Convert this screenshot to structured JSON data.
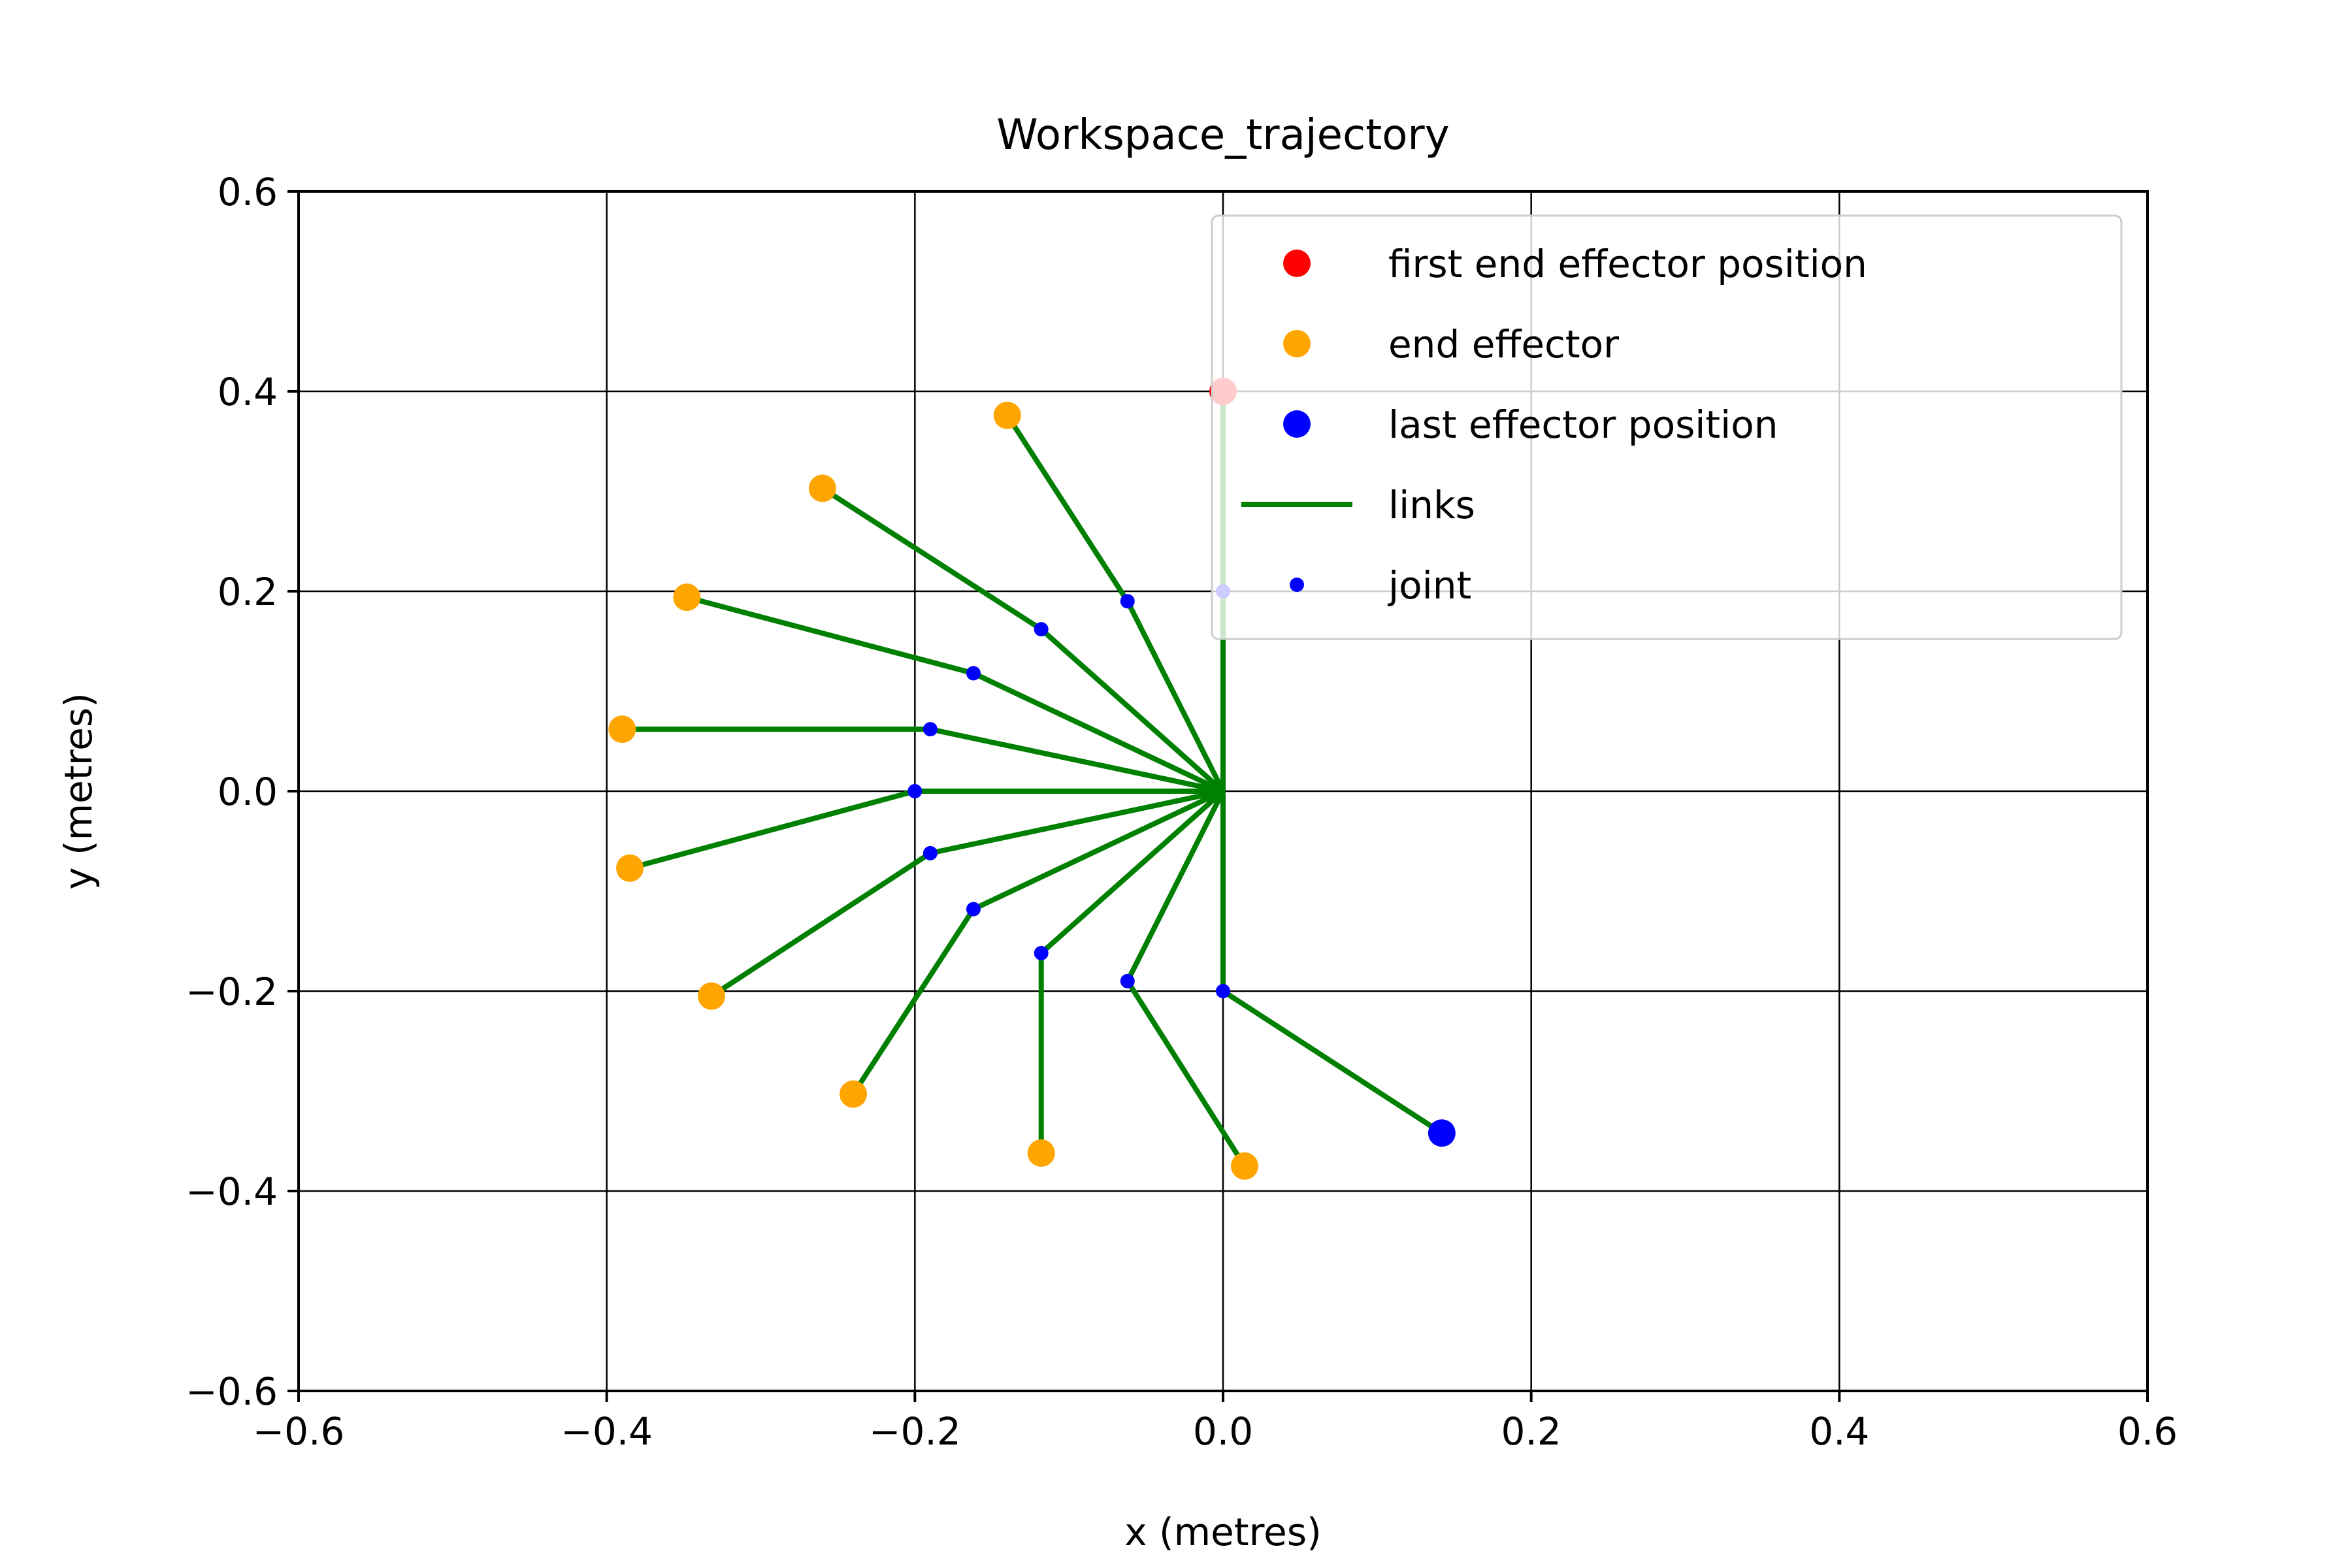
{
  "chart_data": {
    "type": "scatter",
    "title": "Workspace_trajectory",
    "xlabel": "x (metres)",
    "ylabel": "y (metres)",
    "xlim": [
      -0.6,
      0.6
    ],
    "ylim": [
      -0.6,
      0.6
    ],
    "x_ticks": [
      -0.6,
      -0.4,
      -0.2,
      0.0,
      0.2,
      0.4,
      0.6
    ],
    "y_ticks": [
      -0.6,
      -0.4,
      -0.2,
      0.0,
      0.2,
      0.4,
      0.6
    ],
    "x_tick_labels": [
      "−0.6",
      "−0.4",
      "−0.2",
      "0.0",
      "0.2",
      "0.4",
      "0.6"
    ],
    "y_tick_labels": [
      "−0.6",
      "−0.4",
      "−0.2",
      "0.0",
      "0.2",
      "0.4",
      "0.6"
    ],
    "grid": true,
    "legend_position": "top-right",
    "base": [
      0.0,
      0.0
    ],
    "configurations": [
      {
        "joint": [
          0.0,
          0.2
        ],
        "end": [
          0.0,
          0.4
        ]
      },
      {
        "joint": [
          -0.062,
          0.19
        ],
        "end": [
          -0.14,
          0.376
        ]
      },
      {
        "joint": [
          -0.118,
          0.162
        ],
        "end": [
          -0.26,
          0.303
        ]
      },
      {
        "joint": [
          -0.162,
          0.118
        ],
        "end": [
          -0.348,
          0.194
        ]
      },
      {
        "joint": [
          -0.19,
          0.062
        ],
        "end": [
          -0.39,
          0.062
        ]
      },
      {
        "joint": [
          -0.2,
          0.0
        ],
        "end": [
          -0.385,
          -0.077
        ]
      },
      {
        "joint": [
          -0.19,
          -0.062
        ],
        "end": [
          -0.332,
          -0.205
        ]
      },
      {
        "joint": [
          -0.162,
          -0.118
        ],
        "end": [
          -0.24,
          -0.303
        ]
      },
      {
        "joint": [
          -0.118,
          -0.162
        ],
        "end": [
          -0.118,
          -0.362
        ]
      },
      {
        "joint": [
          -0.062,
          -0.19
        ],
        "end": [
          0.014,
          -0.375
        ]
      },
      {
        "joint": [
          0.0,
          -0.2
        ],
        "end": [
          0.142,
          -0.342
        ]
      }
    ],
    "legend": [
      {
        "label": "first end effector position",
        "marker": "large-dot",
        "color": "#ff0000"
      },
      {
        "label": "end effector",
        "marker": "large-dot",
        "color": "#ffa500"
      },
      {
        "label": "last effector position",
        "marker": "large-dot",
        "color": "#0000ff"
      },
      {
        "label": "links",
        "marker": "line",
        "color": "#008000"
      },
      {
        "label": "joint",
        "marker": "small-dot",
        "color": "#0000ff"
      }
    ],
    "colors": {
      "first_end": "#ff0000",
      "end_effector": "#ffa500",
      "last_end": "#0000ff",
      "links": "#008000",
      "joint": "#0000ff"
    }
  }
}
